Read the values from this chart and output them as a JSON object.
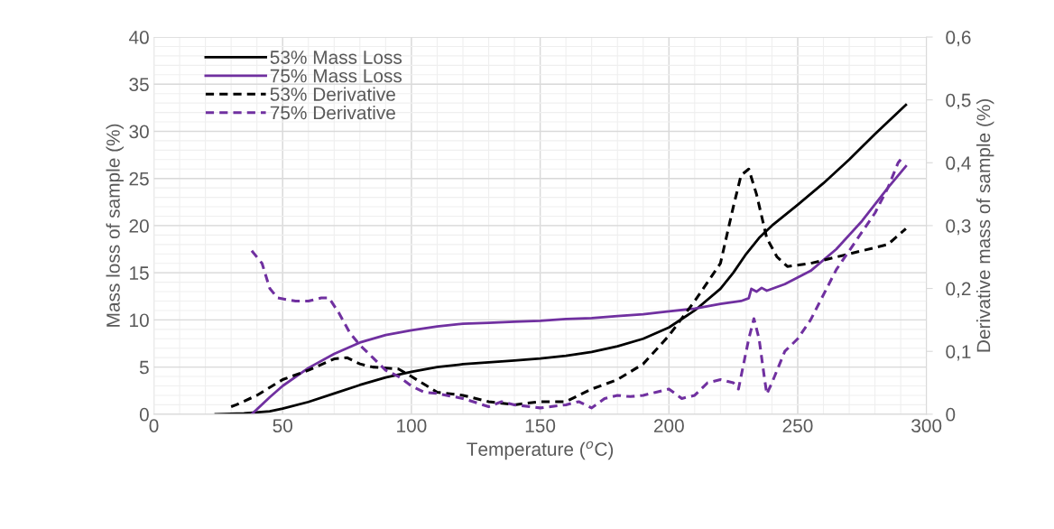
{
  "chart_data": {
    "type": "line",
    "xlabel": "Temperature ($^{o}$C)",
    "ylabel": "Mass loss of sample (%)",
    "y2label": "Derivative mass of sample (%)",
    "xlim": [
      0,
      300
    ],
    "xticks": [
      0,
      50,
      100,
      150,
      200,
      250,
      300
    ],
    "ylim": [
      0,
      40
    ],
    "yticks": [
      0,
      5,
      10,
      15,
      20,
      25,
      30,
      35,
      40
    ],
    "y2lim": [
      0,
      0.6
    ],
    "y2ticks": [
      {
        "value": 0,
        "label": "0"
      },
      {
        "value": 0.1,
        "label": "0,1"
      },
      {
        "value": 0.2,
        "label": "0,2"
      },
      {
        "value": 0.3,
        "label": "0,3"
      },
      {
        "value": 0.4,
        "label": "0,4"
      },
      {
        "value": 0.5,
        "label": "0,5"
      },
      {
        "value": 0.6,
        "label": "0,6"
      }
    ],
    "grid": true,
    "legend": "top left",
    "marker": "none",
    "series": [
      {
        "name": "53% Mass Loss",
        "color": "#000000",
        "line_style": "solid",
        "x": [
          24,
          35,
          45,
          50,
          60,
          70,
          80,
          90,
          100,
          110,
          120,
          130,
          140,
          150,
          160,
          170,
          180,
          190,
          200,
          210,
          220,
          225,
          230,
          235,
          240,
          250,
          260,
          270,
          280,
          292
        ],
        "values": [
          0,
          0.1,
          0.3,
          0.6,
          1.3,
          2.2,
          3.1,
          3.9,
          4.5,
          5.0,
          5.3,
          5.5,
          5.7,
          5.9,
          6.2,
          6.6,
          7.2,
          8.0,
          9.2,
          11.0,
          13.3,
          15.0,
          17.0,
          18.7,
          20.0,
          22.2,
          24.5,
          27.0,
          29.7,
          32.8
        ]
      },
      {
        "name": "75% Mass Loss",
        "color": "#7030a0",
        "line_style": "solid",
        "x": [
          38,
          45,
          50,
          60,
          70,
          80,
          90,
          100,
          110,
          120,
          130,
          140,
          150,
          160,
          170,
          180,
          190,
          200,
          210,
          220,
          228,
          231,
          232,
          234,
          236,
          238,
          245,
          255,
          265,
          275,
          285,
          292
        ],
        "values": [
          0,
          1.8,
          3.0,
          4.9,
          6.4,
          7.6,
          8.4,
          8.9,
          9.3,
          9.6,
          9.7,
          9.8,
          9.9,
          10.1,
          10.2,
          10.4,
          10.6,
          10.9,
          11.2,
          11.7,
          12.0,
          12.3,
          13.3,
          13.0,
          13.4,
          13.1,
          13.8,
          15.2,
          17.5,
          20.5,
          24.0,
          26.3
        ]
      },
      {
        "name": "53% Derivative",
        "color": "#000000",
        "line_style": "dashed",
        "axis": "y2",
        "x": [
          30,
          32,
          40,
          50,
          60,
          70,
          75,
          80,
          85,
          95,
          100,
          110,
          120,
          130,
          140,
          150,
          160,
          170,
          180,
          190,
          200,
          210,
          215,
          220,
          225,
          228,
          231,
          234,
          238,
          242,
          246,
          255,
          265,
          275,
          285,
          292
        ],
        "values": [
          0.012,
          0.015,
          0.03,
          0.055,
          0.07,
          0.088,
          0.09,
          0.08,
          0.075,
          0.072,
          0.06,
          0.035,
          0.03,
          0.02,
          0.015,
          0.02,
          0.02,
          0.04,
          0.055,
          0.08,
          0.125,
          0.18,
          0.21,
          0.24,
          0.33,
          0.38,
          0.39,
          0.35,
          0.28,
          0.25,
          0.235,
          0.24,
          0.25,
          0.26,
          0.27,
          0.295
        ]
      },
      {
        "name": "75% Derivative",
        "color": "#7030a0",
        "line_style": "dashed",
        "axis": "y2",
        "x": [
          38,
          42,
          45,
          48,
          55,
          60,
          65,
          68,
          72,
          76,
          80,
          85,
          90,
          95,
          100,
          105,
          110,
          120,
          130,
          135,
          140,
          150,
          160,
          165,
          170,
          175,
          180,
          185,
          190,
          195,
          200,
          205,
          210,
          215,
          220,
          225,
          227,
          229,
          231,
          233,
          235,
          237,
          238,
          240,
          245,
          250,
          255,
          260,
          265,
          270,
          275,
          280,
          285,
          289,
          290
        ],
        "values": [
          0.26,
          0.24,
          0.2,
          0.185,
          0.18,
          0.18,
          0.185,
          0.185,
          0.16,
          0.13,
          0.11,
          0.09,
          0.07,
          0.06,
          0.045,
          0.035,
          0.033,
          0.025,
          0.012,
          0.02,
          0.015,
          0.01,
          0.015,
          0.02,
          0.01,
          0.025,
          0.03,
          0.028,
          0.03,
          0.035,
          0.04,
          0.025,
          0.03,
          0.05,
          0.055,
          0.05,
          0.04,
          0.08,
          0.12,
          0.152,
          0.12,
          0.06,
          0.032,
          0.05,
          0.1,
          0.12,
          0.15,
          0.19,
          0.23,
          0.26,
          0.29,
          0.32,
          0.36,
          0.4,
          0.405
        ]
      }
    ]
  }
}
